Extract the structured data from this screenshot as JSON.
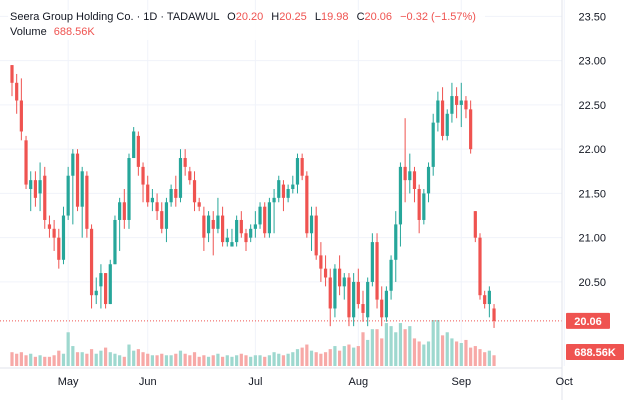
{
  "colors": {
    "up": "#26a69a",
    "down": "#ef5350",
    "volume_up": "#9ed8cf",
    "volume_down": "#f7a9a7",
    "grid": "#f0f3fa",
    "axis_text": "#131722",
    "last_price_line": "#ef5350"
  },
  "legend": {
    "symbol": "Seera Group Holding Co. · 1D · TADAWUL",
    "open_label": "O",
    "open": "20.20",
    "high_label": "H",
    "high": "20.25",
    "low_label": "L",
    "low": "19.98",
    "close_label": "C",
    "close": "20.06",
    "change": "−0.32 (−1.57%)",
    "volume_label": "Volume",
    "volume": "688.56K"
  },
  "chart_data": {
    "type": "candlestick",
    "y_ticks": [
      "23.50",
      "23.00",
      "22.50",
      "22.00",
      "21.50",
      "21.00",
      "20.50"
    ],
    "y_tick_values": [
      23.5,
      23.0,
      22.5,
      22.0,
      21.5,
      21.0,
      20.5
    ],
    "ylim": [
      19.55,
      23.55
    ],
    "x_ticks": [
      "May",
      "Jun",
      "Jul",
      "Aug",
      "Sep",
      "Oct"
    ],
    "x_tick_index": [
      12,
      29,
      52,
      74,
      96,
      118
    ],
    "last_price_label": "20.06",
    "last_price": 20.06,
    "last_volume_label": "688.56K",
    "grid": true,
    "candles": [
      [
        22.95,
        22.95,
        22.6,
        22.75,
        0.9
      ],
      [
        22.75,
        22.85,
        22.4,
        22.55,
        0.8
      ],
      [
        22.55,
        22.8,
        22.1,
        22.2,
        0.9
      ],
      [
        22.1,
        22.15,
        21.55,
        21.6,
        0.7
      ],
      [
        21.55,
        21.75,
        21.3,
        21.65,
        0.8
      ],
      [
        21.65,
        21.75,
        21.35,
        21.45,
        0.6
      ],
      [
        21.5,
        21.85,
        21.3,
        21.65,
        0.7
      ],
      [
        21.7,
        21.8,
        21.1,
        21.2,
        0.6
      ],
      [
        21.15,
        21.25,
        21.0,
        21.1,
        0.6
      ],
      [
        21.1,
        21.2,
        20.85,
        21.0,
        0.7
      ],
      [
        21.0,
        21.1,
        20.65,
        20.75,
        1.0
      ],
      [
        20.75,
        21.35,
        20.7,
        21.25,
        0.8
      ],
      [
        21.25,
        21.8,
        21.2,
        21.7,
        2.2
      ],
      [
        21.7,
        22.0,
        21.15,
        21.95,
        1.3
      ],
      [
        21.95,
        22.0,
        21.3,
        21.35,
        0.9
      ],
      [
        21.35,
        21.8,
        21.0,
        21.75,
        0.9
      ],
      [
        21.7,
        21.75,
        21.0,
        21.1,
        0.8
      ],
      [
        21.1,
        21.15,
        20.2,
        20.35,
        1.1
      ],
      [
        20.35,
        20.55,
        20.25,
        20.4,
        0.8
      ],
      [
        20.45,
        20.7,
        20.2,
        20.6,
        1.0
      ],
      [
        20.6,
        20.6,
        20.2,
        20.25,
        1.2
      ],
      [
        20.25,
        20.75,
        20.25,
        20.7,
        0.9
      ],
      [
        20.7,
        21.25,
        20.7,
        21.2,
        0.8
      ],
      [
        21.2,
        21.45,
        20.85,
        21.4,
        0.7
      ],
      [
        21.4,
        21.55,
        21.1,
        21.2,
        0.6
      ],
      [
        21.2,
        21.95,
        21.1,
        21.9,
        1.4
      ],
      [
        21.9,
        22.25,
        21.9,
        22.2,
        1.0
      ],
      [
        22.15,
        22.2,
        21.7,
        21.8,
        1.1
      ],
      [
        21.8,
        21.85,
        21.4,
        21.6,
        0.9
      ],
      [
        21.6,
        21.7,
        21.35,
        21.4,
        0.8
      ],
      [
        21.4,
        21.55,
        21.3,
        21.45,
        0.7
      ],
      [
        21.4,
        21.5,
        21.2,
        21.3,
        0.7
      ],
      [
        21.3,
        21.4,
        21.05,
        21.1,
        0.8
      ],
      [
        21.1,
        21.45,
        20.95,
        21.4,
        0.7
      ],
      [
        21.4,
        21.6,
        21.35,
        21.55,
        0.7
      ],
      [
        21.55,
        21.7,
        21.35,
        21.45,
        0.8
      ],
      [
        21.45,
        22.0,
        21.4,
        21.9,
        1.0
      ],
      [
        21.9,
        22.0,
        21.7,
        21.8,
        0.8
      ],
      [
        21.75,
        21.8,
        21.6,
        21.65,
        0.7
      ],
      [
        21.65,
        21.75,
        21.3,
        21.4,
        0.9
      ],
      [
        21.4,
        21.45,
        21.3,
        21.35,
        0.6
      ],
      [
        21.25,
        21.35,
        20.85,
        21.0,
        0.7
      ],
      [
        21.05,
        21.3,
        20.95,
        21.25,
        0.6
      ],
      [
        21.2,
        21.3,
        20.8,
        21.1,
        0.7
      ],
      [
        21.1,
        21.45,
        21.05,
        21.25,
        0.8
      ],
      [
        21.25,
        21.35,
        20.9,
        20.95,
        0.6
      ],
      [
        20.95,
        21.1,
        20.9,
        21.0,
        0.7
      ],
      [
        20.9,
        21.1,
        20.9,
        20.95,
        0.6
      ],
      [
        20.95,
        21.25,
        20.9,
        21.2,
        0.7
      ],
      [
        21.2,
        21.3,
        21.0,
        21.05,
        0.8
      ],
      [
        21.05,
        21.1,
        20.85,
        20.95,
        0.7
      ],
      [
        21.0,
        21.15,
        20.95,
        21.1,
        0.6
      ],
      [
        21.1,
        21.3,
        21.0,
        21.15,
        0.7
      ],
      [
        21.15,
        21.4,
        21.1,
        21.35,
        0.7
      ],
      [
        21.35,
        21.4,
        21.0,
        21.05,
        0.6
      ],
      [
        21.05,
        21.45,
        21.0,
        21.4,
        0.7
      ],
      [
        21.4,
        21.55,
        21.05,
        21.45,
        0.9
      ],
      [
        21.45,
        21.7,
        21.4,
        21.65,
        0.8
      ],
      [
        21.6,
        21.65,
        21.3,
        21.45,
        0.7
      ],
      [
        21.45,
        21.6,
        21.4,
        21.55,
        0.8
      ],
      [
        21.55,
        21.7,
        21.5,
        21.6,
        0.9
      ],
      [
        21.6,
        21.95,
        21.5,
        21.9,
        1.1
      ],
      [
        21.9,
        21.95,
        21.65,
        21.7,
        1.2
      ],
      [
        21.7,
        21.75,
        21.0,
        21.05,
        1.4
      ],
      [
        21.05,
        21.35,
        20.85,
        21.25,
        1.0
      ],
      [
        21.25,
        21.35,
        20.75,
        20.8,
        0.9
      ],
      [
        20.8,
        20.95,
        20.5,
        20.65,
        0.8
      ],
      [
        20.65,
        20.8,
        20.45,
        20.55,
        0.9
      ],
      [
        20.55,
        20.65,
        20.0,
        20.2,
        1.1
      ],
      [
        20.2,
        20.7,
        20.1,
        20.65,
        1.3
      ],
      [
        20.65,
        20.8,
        20.35,
        20.45,
        1.0
      ],
      [
        20.45,
        20.6,
        20.3,
        20.55,
        1.3
      ],
      [
        20.55,
        20.6,
        20.0,
        20.1,
        1.4
      ],
      [
        20.1,
        20.6,
        20.0,
        20.5,
        1.2
      ],
      [
        20.5,
        20.65,
        20.2,
        20.25,
        1.3
      ],
      [
        20.25,
        20.4,
        20.05,
        20.15,
        2.2
      ],
      [
        20.1,
        20.55,
        20.0,
        20.5,
        1.7
      ],
      [
        20.5,
        21.05,
        20.45,
        20.95,
        2.4
      ],
      [
        20.95,
        21.05,
        20.2,
        20.3,
        2.4
      ],
      [
        20.3,
        20.45,
        20.0,
        20.1,
        1.8
      ],
      [
        20.1,
        20.45,
        20.05,
        20.4,
        2.8
      ],
      [
        20.4,
        20.8,
        20.3,
        20.75,
        2.6
      ],
      [
        20.75,
        21.3,
        20.5,
        21.15,
        2.2
      ],
      [
        21.15,
        21.85,
        20.9,
        21.8,
        2.8
      ],
      [
        21.8,
        22.35,
        21.4,
        21.65,
        2.4
      ],
      [
        21.65,
        21.95,
        21.5,
        21.75,
        2.6
      ],
      [
        21.75,
        21.8,
        21.4,
        21.55,
        1.8
      ],
      [
        21.55,
        21.6,
        21.05,
        21.2,
        1.6
      ],
      [
        21.2,
        21.55,
        21.15,
        21.5,
        1.4
      ],
      [
        21.5,
        21.85,
        21.4,
        21.8,
        1.6
      ],
      [
        21.8,
        22.4,
        21.7,
        22.3,
        3.0
      ],
      [
        22.3,
        22.65,
        22.2,
        22.55,
        3.0
      ],
      [
        22.55,
        22.7,
        22.1,
        22.15,
        2.0
      ],
      [
        22.15,
        22.45,
        22.1,
        22.4,
        2.2
      ],
      [
        22.4,
        22.75,
        22.3,
        22.6,
        1.8
      ],
      [
        22.6,
        22.7,
        22.35,
        22.5,
        1.6
      ],
      [
        22.5,
        22.75,
        22.25,
        22.55,
        1.5
      ],
      [
        22.55,
        22.6,
        22.35,
        22.45,
        1.7
      ],
      [
        22.45,
        22.55,
        21.95,
        22.0,
        1.2
      ],
      [
        21.3,
        21.3,
        20.95,
        21.0,
        1.3
      ],
      [
        21.0,
        21.05,
        20.3,
        20.35,
        1.1
      ],
      [
        20.35,
        20.4,
        20.2,
        20.25,
        0.9
      ],
      [
        20.25,
        20.45,
        20.1,
        20.4,
        1.0
      ],
      [
        20.2,
        20.25,
        19.98,
        20.06,
        0.7
      ]
    ]
  }
}
